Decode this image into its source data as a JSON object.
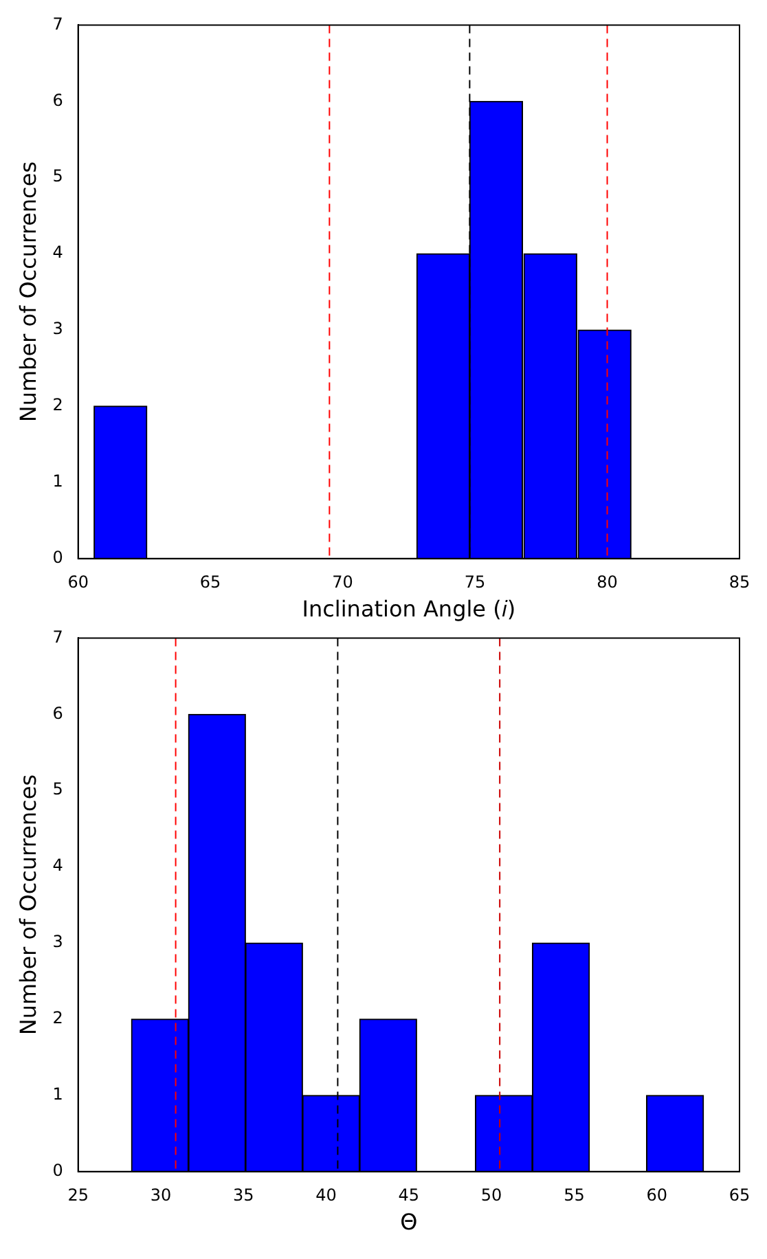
{
  "chart_data": [
    {
      "type": "histogram",
      "xlabel": "Inclination Angle (𝑖)",
      "ylabel": "Number of Occurrences",
      "bins": [
        60.6,
        62.6,
        64.6,
        66.7,
        68.7,
        70.7,
        72.8,
        74.8,
        76.8,
        78.9,
        80.9
      ],
      "values": [
        2,
        0,
        0,
        0,
        0,
        0,
        4,
        6,
        4,
        3
      ],
      "color": "#0000ff",
      "xlim": [
        60,
        85
      ],
      "xticks": [
        60,
        65,
        70,
        75,
        80,
        85
      ],
      "ylim": [
        0,
        7
      ],
      "yticks": [
        0,
        1,
        2,
        3,
        4,
        5,
        6,
        7
      ],
      "grid": false,
      "ref_lines": [
        {
          "axis": "x",
          "value": 69.5,
          "color": "#ff0000",
          "line_style": "dashed"
        },
        {
          "axis": "x",
          "value": 74.8,
          "color": "#000000",
          "line_style": "dashed"
        },
        {
          "axis": "x",
          "value": 80.0,
          "color": "#ff0000",
          "line_style": "dashed"
        }
      ]
    },
    {
      "type": "histogram",
      "xlabel": "Θ",
      "ylabel": "Number of Occurrences",
      "bins": [
        28.2,
        31.7,
        35.1,
        38.6,
        42.0,
        45.5,
        49.0,
        52.5,
        55.9,
        59.4,
        62.8
      ],
      "values": [
        2,
        6,
        3,
        1,
        2,
        0,
        1,
        3,
        0,
        1
      ],
      "color": "#0000ff",
      "xlim": [
        25,
        65
      ],
      "xticks": [
        25,
        30,
        35,
        40,
        45,
        50,
        55,
        60,
        65
      ],
      "ylim": [
        0,
        7
      ],
      "yticks": [
        0,
        1,
        2,
        3,
        4,
        5,
        6,
        7
      ],
      "grid": false,
      "ref_lines": [
        {
          "axis": "x",
          "value": 30.9,
          "color": "#ff0000",
          "line_style": "dashed"
        },
        {
          "axis": "x",
          "value": 40.7,
          "color": "#000000",
          "line_style": "dashed"
        },
        {
          "axis": "x",
          "value": 50.5,
          "color": "#cc0000",
          "line_style": "dashed"
        }
      ]
    }
  ]
}
